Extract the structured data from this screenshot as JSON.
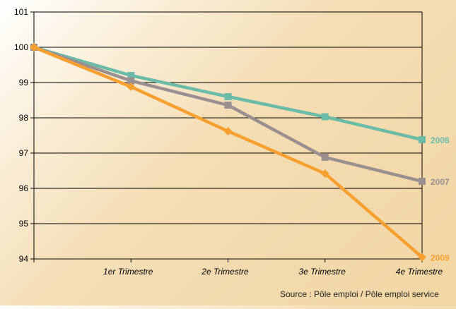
{
  "chart_data": {
    "type": "line",
    "categories": [
      "",
      "1er Trimestre",
      "2e Trimestre",
      "3e Trimestre",
      "4e Trimestre"
    ],
    "ylim": [
      94,
      101
    ],
    "yticks": [
      94,
      95,
      96,
      97,
      98,
      99,
      100,
      101
    ],
    "grid": true,
    "series": [
      {
        "name": "2008",
        "color": "#6cbba8",
        "marker": "square",
        "values": [
          100,
          99.2,
          98.6,
          98.03,
          97.38
        ]
      },
      {
        "name": "2007",
        "color": "#9a9092",
        "marker": "square",
        "values": [
          100,
          99.05,
          98.36,
          96.88,
          96.2
        ]
      },
      {
        "name": "2009",
        "color": "#f7a030",
        "marker": "diamond",
        "values": [
          100,
          98.88,
          97.62,
          96.42,
          94.05
        ]
      }
    ]
  },
  "source": "Source : Pôle emploi / Pôle emploi service"
}
